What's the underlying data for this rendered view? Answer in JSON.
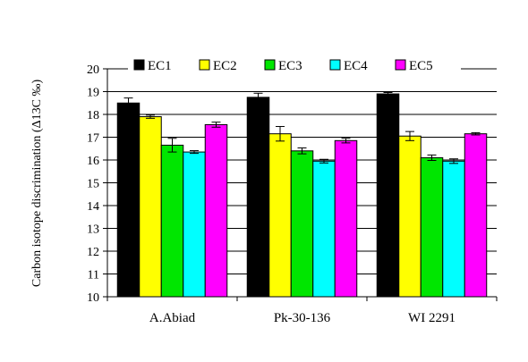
{
  "chart_data": {
    "type": "bar",
    "categories": [
      "A.Abiad",
      "Pk-30-136",
      "WI 2291"
    ],
    "series": [
      {
        "name": "EC1",
        "color": "#000000",
        "values": [
          18.5,
          18.75,
          18.9
        ],
        "errors": [
          0.22,
          0.18,
          0.06
        ]
      },
      {
        "name": "EC2",
        "color": "#ffff00",
        "values": [
          17.9,
          17.15,
          17.05
        ],
        "errors": [
          0.07,
          0.32,
          0.2
        ]
      },
      {
        "name": "EC3",
        "color": "#00e600",
        "values": [
          16.65,
          16.4,
          16.1
        ],
        "errors": [
          0.3,
          0.13,
          0.12
        ]
      },
      {
        "name": "EC4",
        "color": "#00ffff",
        "values": [
          16.35,
          15.95,
          15.95
        ],
        "errors": [
          0.06,
          0.08,
          0.1
        ]
      },
      {
        "name": "EC5",
        "color": "#ff00ff",
        "values": [
          17.55,
          16.85,
          17.15
        ],
        "errors": [
          0.11,
          0.1,
          0.05
        ]
      }
    ],
    "ylabel": "Carbon isotope discrimination (Δ13C ‰)",
    "ylim": [
      10,
      20
    ],
    "yticks": [
      "10",
      "11",
      "12",
      "13",
      "14",
      "15",
      "16",
      "17",
      "18",
      "19",
      "20"
    ],
    "grid": true,
    "legend": "top"
  }
}
